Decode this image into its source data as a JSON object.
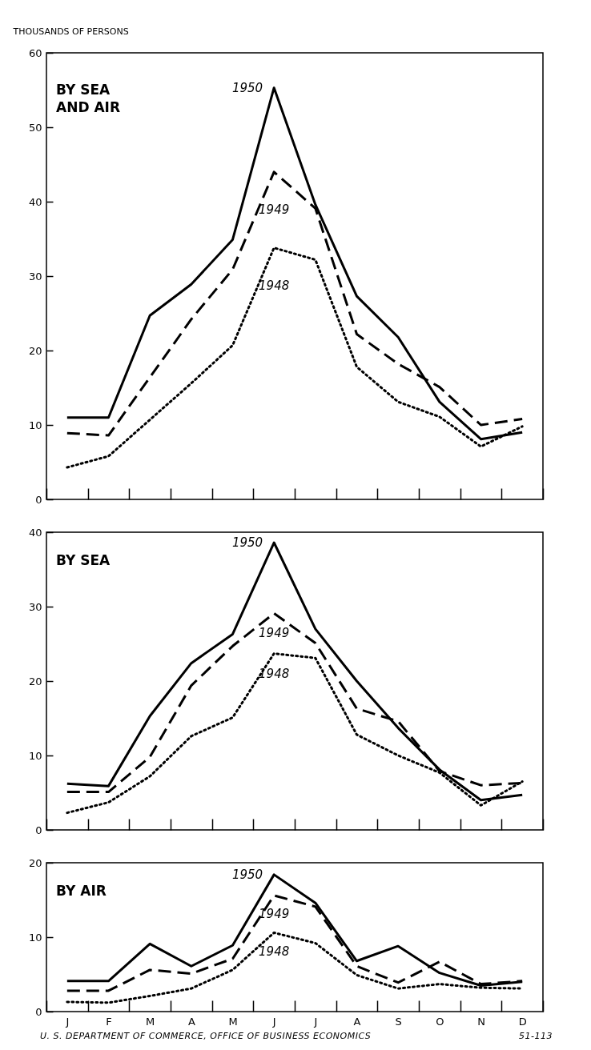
{
  "chart_data": [
    {
      "type": "line",
      "title": "BY SEA\nAND AIR",
      "ylabel": "THOUSANDS OF PERSONS",
      "categories": [
        null,
        null,
        null,
        null,
        null,
        null,
        null,
        null,
        null,
        null,
        null,
        null
      ],
      "series": [
        {
          "name": "1950",
          "color": "#000000",
          "line_style": "solid",
          "values": [
            11,
            11,
            24.7,
            28.9,
            34.9,
            55.3,
            39.6,
            27.3,
            21.8,
            13.1,
            8.1,
            9.0
          ]
        },
        {
          "name": "1949",
          "color": "#000000",
          "line_style": "dashed",
          "values": [
            8.9,
            8.6,
            16.4,
            24.2,
            30.9,
            44,
            39.1,
            22.2,
            18.2,
            15.1,
            10,
            10.8
          ]
        },
        {
          "name": "1948",
          "color": "#000000",
          "line_style": "dotted",
          "values": [
            4.3,
            5.8,
            10.7,
            15.6,
            20.7,
            33.8,
            32.2,
            17.8,
            13.1,
            11.1,
            7.1,
            9.8
          ]
        }
      ],
      "ylim": [
        0,
        60
      ],
      "yticks": [
        0,
        10,
        20,
        30,
        40,
        50,
        60
      ]
    },
    {
      "type": "line",
      "title": "BY SEA",
      "categories": [
        null,
        null,
        null,
        null,
        null,
        null,
        null,
        null,
        null,
        null,
        null,
        null
      ],
      "series": [
        {
          "name": "1950",
          "color": "#000000",
          "line_style": "solid",
          "values": [
            6.2,
            5.9,
            15.3,
            22.4,
            26.3,
            38.6,
            27,
            20,
            13.7,
            8.1,
            4,
            4.7
          ]
        },
        {
          "name": "1949",
          "color": "#000000",
          "line_style": "dashed",
          "values": [
            5.1,
            5.1,
            9.8,
            19.4,
            24.7,
            29.1,
            25.1,
            16.3,
            14.6,
            7.9,
            6,
            6.3
          ]
        },
        {
          "name": "1948",
          "color": "#000000",
          "line_style": "dotted",
          "values": [
            2.3,
            3.7,
            7.2,
            12.6,
            15.1,
            23.7,
            23.1,
            12.8,
            10,
            7.7,
            3.3,
            6.5
          ]
        }
      ],
      "ylim": [
        0,
        40
      ],
      "yticks": [
        0,
        10,
        20,
        30,
        40
      ]
    },
    {
      "type": "line",
      "title": "BY AIR",
      "categories": [
        "J",
        "F",
        "M",
        "A",
        "M",
        "J",
        "J",
        "A",
        "S",
        "O",
        "N",
        "D"
      ],
      "series": [
        {
          "name": "1950",
          "color": "#000000",
          "line_style": "solid",
          "values": [
            4.1,
            4.1,
            9.1,
            6.1,
            8.9,
            18.4,
            14.6,
            6.8,
            8.8,
            5.2,
            3.5,
            4.0
          ]
        },
        {
          "name": "1949",
          "color": "#000000",
          "line_style": "dashed",
          "values": [
            2.8,
            2.8,
            5.6,
            5.1,
            7.1,
            15.6,
            14.1,
            6.1,
            3.9,
            6.7,
            3.7,
            4.1
          ]
        },
        {
          "name": "1948",
          "color": "#000000",
          "line_style": "dotted",
          "values": [
            1.3,
            1.2,
            2.1,
            3.1,
            5.6,
            10.6,
            9.2,
            4.9,
            3.1,
            3.7,
            3.2,
            3.1
          ]
        }
      ],
      "annotations": [
        "U. S. DEPARTMENT OF COMMERCE, OFFICE OF BUSINESS ECONOMICS",
        "51-113"
      ],
      "ylim": [
        0,
        20
      ],
      "yticks": [
        0,
        10,
        20
      ]
    }
  ]
}
